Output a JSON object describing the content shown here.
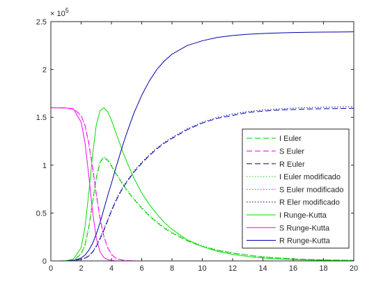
{
  "chart_data": {
    "type": "line",
    "title": "",
    "xlabel": "",
    "ylabel": "",
    "xlim": [
      0,
      20
    ],
    "ylim": [
      0,
      250000
    ],
    "y_exponent_label": "× 10^5",
    "x_ticks": [
      0,
      2,
      4,
      6,
      8,
      10,
      12,
      14,
      16,
      18,
      20
    ],
    "x_tick_labels": [
      "0",
      "2",
      "4",
      "6",
      "8",
      "10",
      "12",
      "14",
      "16",
      "18",
      "20"
    ],
    "y_ticks": [
      0,
      50000,
      100000,
      150000,
      200000,
      250000
    ],
    "y_tick_labels": [
      "0",
      "0.5",
      "1",
      "1.5",
      "2",
      "2.5"
    ],
    "grid": false,
    "legend_position": "right",
    "x": [
      0,
      0.5,
      1,
      1.5,
      2,
      2.25,
      2.5,
      2.75,
      3,
      3.25,
      3.5,
      3.75,
      4,
      4.25,
      4.5,
      4.75,
      5,
      5.5,
      6,
      6.5,
      7,
      7.5,
      8,
      9,
      10,
      11,
      12,
      13,
      14,
      15,
      16,
      17,
      18,
      19,
      20
    ],
    "series": [
      {
        "name": "I Euler",
        "color": "#00cc00",
        "dash": "8,4",
        "width": 1,
        "values": [
          0,
          0,
          100,
          800,
          7000,
          16000,
          34000,
          60000,
          86000,
          103000,
          108000,
          105000,
          99000,
          92000,
          86000,
          80000,
          74000,
          64000,
          55000,
          47000,
          40000,
          34000,
          29000,
          21000,
          15000,
          11000,
          8000,
          6000,
          4000,
          3000,
          2000,
          1500,
          1100,
          800,
          600
        ]
      },
      {
        "name": "S Euler",
        "color": "#ff00ff",
        "dash": "8,4",
        "width": 1,
        "values": [
          160000,
          159900,
          159800,
          159000,
          152000,
          142000,
          124000,
          99000,
          70000,
          45000,
          26000,
          14000,
          7000,
          3500,
          1700,
          800,
          400,
          100,
          0,
          0,
          0,
          0,
          0,
          0,
          0,
          0,
          0,
          0,
          0,
          0,
          0,
          0,
          0,
          0,
          0
        ]
      },
      {
        "name": "R Euler",
        "color": "#0000aa",
        "dash": "8,4",
        "width": 1,
        "values": [
          0,
          0,
          50,
          300,
          1500,
          2800,
          5000,
          9000,
          15000,
          23000,
          32000,
          42000,
          52000,
          61000,
          69000,
          76000,
          82000,
          93000,
          102000,
          110000,
          117000,
          123000,
          128000,
          137000,
          144000,
          149000,
          152000,
          155000,
          156500,
          157500,
          158200,
          158700,
          159000,
          159200,
          159400
        ]
      },
      {
        "name": "I Euler modificado",
        "color": "#00cc00",
        "dash": "1.5,2.5",
        "width": 1,
        "values": [
          0,
          0,
          100,
          900,
          7500,
          17000,
          36000,
          62000,
          88000,
          104000,
          109000,
          106000,
          100000,
          93000,
          87000,
          81000,
          75000,
          65000,
          56000,
          48000,
          41000,
          35000,
          30000,
          22000,
          16000,
          11500,
          8500,
          6200,
          4500,
          3300,
          2400,
          1700,
          1200,
          900,
          700
        ]
      },
      {
        "name": "S Euler modificado",
        "color": "#ff00ff",
        "dash": "1.5,2.5",
        "width": 1,
        "values": [
          160000,
          159900,
          159800,
          158800,
          151500,
          141000,
          122000,
          97000,
          68000,
          43000,
          25000,
          13500,
          6500,
          3200,
          1500,
          700,
          350,
          100,
          0,
          0,
          0,
          0,
          0,
          0,
          0,
          0,
          0,
          0,
          0,
          0,
          0,
          0,
          0,
          0,
          0
        ]
      },
      {
        "name": "R Eler modificado",
        "color": "#0000aa",
        "dash": "1.5,2.5",
        "width": 1,
        "values": [
          0,
          0,
          50,
          300,
          1600,
          3000,
          5300,
          9500,
          15500,
          24000,
          33000,
          43000,
          53000,
          62000,
          70000,
          77000,
          83000,
          94000,
          103000,
          111000,
          118000,
          124000,
          129000,
          138000,
          145000,
          150000,
          153500,
          156000,
          157700,
          158800,
          159600,
          160200,
          160600,
          160900,
          161100
        ]
      },
      {
        "name": "I Runge-Kutta",
        "color": "#00dd00",
        "dash": "",
        "width": 1,
        "values": [
          0,
          0,
          200,
          2000,
          14000,
          35000,
          70000,
          110000,
          142000,
          157000,
          160000,
          156000,
          147000,
          136000,
          125000,
          114000,
          104000,
          86000,
          71000,
          59000,
          49000,
          40000,
          33000,
          22000,
          15000,
          10000,
          6800,
          4600,
          3100,
          2100,
          1400,
          900,
          600,
          400,
          300
        ]
      },
      {
        "name": "S Runge-Kutta",
        "color": "#ff00ff",
        "dash": "",
        "width": 1,
        "values": [
          160000,
          159900,
          159800,
          158500,
          145000,
          124000,
          90000,
          52000,
          24000,
          9500,
          3500,
          1300,
          500,
          200,
          0,
          0,
          0,
          0,
          0,
          0,
          0,
          0,
          0,
          0,
          0,
          0,
          0,
          0,
          0,
          0,
          0,
          0,
          0,
          0,
          0
        ]
      },
      {
        "name": "R Runge-Kutta",
        "color": "#0000aa",
        "dash": "",
        "width": 1,
        "values": [
          0,
          0,
          100,
          500,
          3000,
          6000,
          11000,
          18000,
          28000,
          40000,
          54000,
          68000,
          81000,
          95000,
          108000,
          121000,
          133000,
          155000,
          173000,
          188000,
          200000,
          209000,
          216000,
          225000,
          230000,
          233500,
          235500,
          236800,
          237600,
          238200,
          238600,
          238900,
          239100,
          239200,
          239300
        ]
      }
    ]
  }
}
